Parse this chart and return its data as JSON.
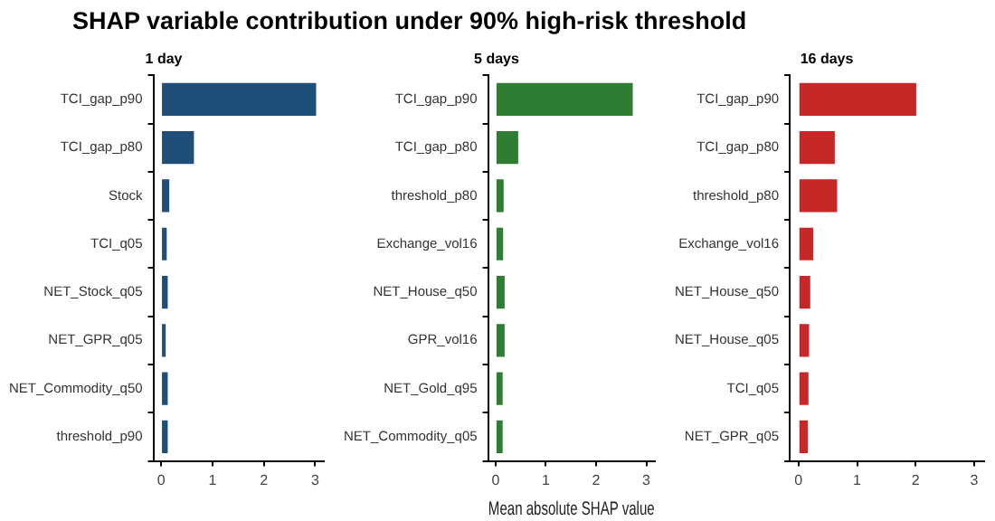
{
  "chart_data": [
    {
      "type": "bar",
      "orientation": "horizontal",
      "title": "SHAP variable contribution under 90% high-risk threshold",
      "subtitle": "1 day",
      "categories": [
        "TCI_gap_p90",
        "TCI_gap_p80",
        "Stock",
        "TCI_q05",
        "NET_Stock_q05",
        "NET_GPR_q05",
        "NET_Commodity_q50",
        "threshold_p90"
      ],
      "values": [
        3.02,
        0.64,
        0.16,
        0.11,
        0.13,
        0.09,
        0.13,
        0.13
      ],
      "color": "#1f4e79",
      "xlim": [
        -0.15,
        3.17
      ],
      "xticks": [
        0,
        1,
        2,
        3
      ],
      "grid": false,
      "legend": false
    },
    {
      "type": "bar",
      "orientation": "horizontal",
      "subtitle": "5 days",
      "xlabel": "Mean absolute SHAP value",
      "categories": [
        "TCI_gap_p90",
        "TCI_gap_p80",
        "threshold_p80",
        "Exchange_vol16",
        "NET_House_q50",
        "GPR_vol16",
        "NET_Gold_q95",
        "NET_Commodity_q05"
      ],
      "values": [
        2.73,
        0.45,
        0.16,
        0.15,
        0.18,
        0.18,
        0.14,
        0.14
      ],
      "color": "#2e7d32",
      "xlim": [
        -0.15,
        3.17
      ],
      "xticks": [
        0,
        1,
        2,
        3
      ],
      "grid": false,
      "legend": false
    },
    {
      "type": "bar",
      "orientation": "horizontal",
      "subtitle": "16 days",
      "categories": [
        "TCI_gap_p90",
        "TCI_gap_p80",
        "threshold_p80",
        "Exchange_vol16",
        "NET_House_q50",
        "NET_House_q05",
        "TCI_q05",
        "NET_GPR_q05"
      ],
      "values": [
        2.01,
        0.62,
        0.66,
        0.25,
        0.2,
        0.18,
        0.17,
        0.16
      ],
      "color": "#c62828",
      "xlim": [
        -0.15,
        3.17
      ],
      "xticks": [
        0,
        1,
        2,
        3
      ],
      "grid": false,
      "legend": false
    }
  ]
}
